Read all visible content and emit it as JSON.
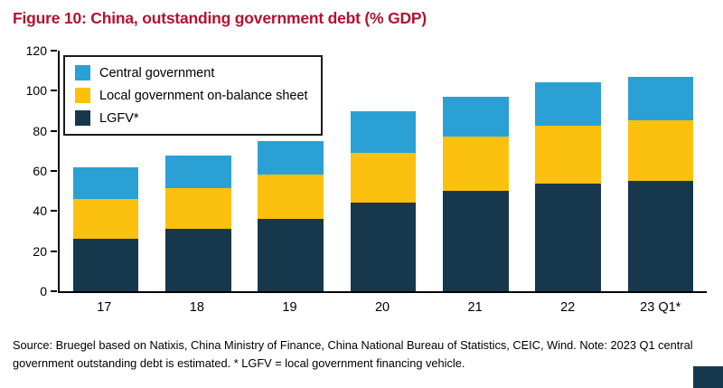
{
  "title": "Figure 10: China, outstanding government debt (% GDP)",
  "source": "Source: Bruegel based on Natixis, China Ministry of Finance, China National Bureau of Statistics, CEIC, Wind. Note: 2023 Q1 central government outstanding debt is estimated. * LGFV = local government financing vehicle.",
  "colors": {
    "title_red": "#b5122e",
    "central_blue": "#2ba0d5",
    "local_yellow": "#fcc00e",
    "lgfv_navy": "#17384c"
  },
  "legend": [
    {
      "label": "Central government",
      "color": "#2ba0d5"
    },
    {
      "label": "Local government on-balance sheet",
      "color": "#fcc00e"
    },
    {
      "label": "LGFV*",
      "color": "#17384c"
    }
  ],
  "chart_data": {
    "type": "bar",
    "stacked": true,
    "title": "Figure 10: China, outstanding government debt (% GDP)",
    "xlabel": "",
    "ylabel": "% GDP",
    "ylim": [
      0,
      120
    ],
    "yticks": [
      0,
      20,
      40,
      60,
      80,
      100,
      120
    ],
    "grid": false,
    "legend_position": "top-left",
    "categories": [
      "17",
      "18",
      "19",
      "20",
      "21",
      "22",
      "23 Q1*"
    ],
    "series": [
      {
        "name": "LGFV*",
        "color": "#17384c",
        "values": [
          26,
          31,
          36,
          44,
          50,
          53.5,
          55
        ]
      },
      {
        "name": "Local government on-balance sheet",
        "color": "#fcc00e",
        "values": [
          20,
          20.5,
          22,
          25,
          27,
          29,
          30.5
        ]
      },
      {
        "name": "Central government",
        "color": "#2ba0d5",
        "values": [
          16,
          16,
          17,
          21,
          20,
          21.5,
          21.5
        ]
      }
    ],
    "totals": [
      62,
      67.5,
      75,
      90,
      97,
      104,
      107
    ]
  }
}
